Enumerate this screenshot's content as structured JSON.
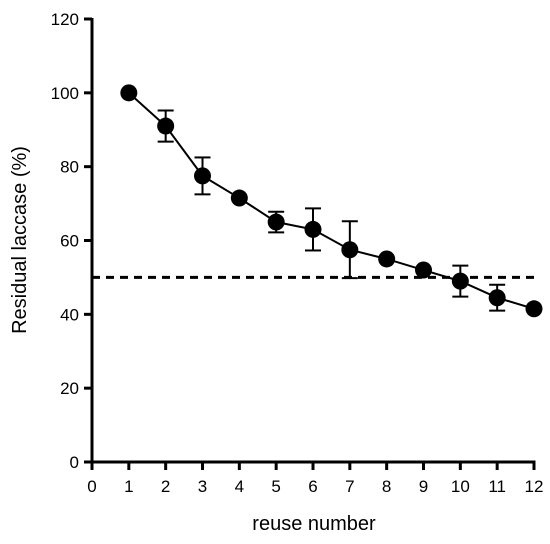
{
  "chart_data": {
    "type": "line",
    "title": "",
    "xlabel": "reuse number",
    "ylabel": "Residual laccase (%)",
    "xlim": [
      0,
      12
    ],
    "ylim": [
      0,
      120
    ],
    "x_ticks": [
      "0",
      "1",
      "2",
      "3",
      "4",
      "5",
      "6",
      "7",
      "8",
      "9",
      "10",
      "11",
      "12"
    ],
    "y_ticks": [
      "0",
      "20",
      "40",
      "60",
      "80",
      "100",
      "120"
    ],
    "grid": false,
    "legend": "none",
    "reference_line": {
      "y": 50,
      "style": "dashed"
    },
    "series": [
      {
        "x": [
          1,
          2,
          3,
          4,
          5,
          6,
          7,
          8,
          9,
          10,
          11,
          12
        ],
        "values": [
          100,
          91,
          77.5,
          71.5,
          65,
          63,
          57.5,
          55,
          52,
          49,
          44.5,
          41.5
        ],
        "error": [
          0,
          4.2,
          5,
          0,
          2.8,
          5.7,
          7.7,
          0,
          0,
          4.2,
          3.5,
          0
        ],
        "marker": "circle",
        "color": "#000000"
      }
    ]
  }
}
